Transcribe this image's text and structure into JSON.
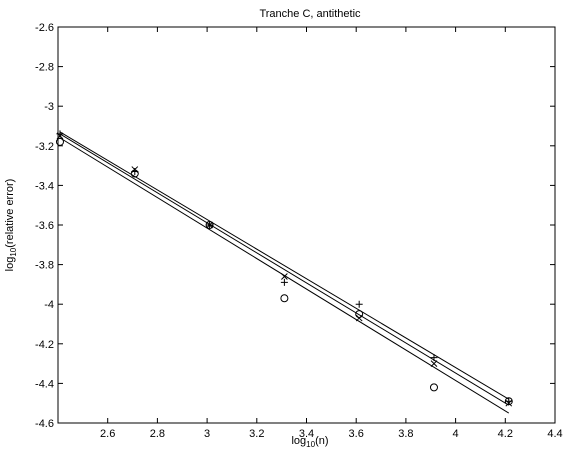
{
  "chart_data": {
    "type": "scatter",
    "title": "Tranche C, antithetic",
    "xlabel": {
      "base": "log",
      "sub": "10",
      "rest": "(n)"
    },
    "ylabel": {
      "base": "log",
      "sub": "10",
      "rest": "(relative error)"
    },
    "xlim": [
      2.4,
      4.4
    ],
    "ylim": [
      -4.6,
      -2.6
    ],
    "xticks": [
      2.6,
      2.8,
      3,
      3.2,
      3.4,
      3.6,
      3.8,
      4,
      4.2,
      4.4
    ],
    "xtick_labels": [
      "2.6",
      "2.8",
      "3",
      "3.2",
      "3.4",
      "3.6",
      "3.8",
      "4",
      "4.2",
      "4.4"
    ],
    "yticks": [
      -2.6,
      -2.8,
      -3,
      -3.2,
      -3.4,
      -3.6,
      -3.8,
      -4,
      -4.2,
      -4.4,
      -4.6
    ],
    "ytick_labels": [
      "-2.6",
      "-2.8",
      "-3",
      "-3.2",
      "-3.4",
      "-3.6",
      "-3.8",
      "-4",
      "-4.2",
      "-4.4",
      "-4.6"
    ],
    "grid": false,
    "series": [
      {
        "marker": "circle",
        "x": [
          2.408,
          2.709,
          3.01,
          3.311,
          3.612,
          3.913,
          4.214
        ],
        "y": [
          -3.18,
          -3.34,
          -3.6,
          -3.97,
          -4.05,
          -4.42,
          -4.49
        ],
        "fit": {
          "x": [
            2.408,
            4.214
          ],
          "y": [
            -3.16,
            -4.55
          ]
        }
      },
      {
        "marker": "plus",
        "x": [
          2.408,
          2.709,
          3.01,
          3.311,
          3.612,
          3.913,
          4.214
        ],
        "y": [
          -3.14,
          -3.33,
          -3.6,
          -3.89,
          -4.0,
          -4.27,
          -4.49
        ],
        "fit": {
          "x": [
            2.408,
            4.214
          ],
          "y": [
            -3.13,
            -4.48
          ]
        }
      },
      {
        "marker": "cross",
        "x": [
          2.408,
          2.709,
          3.01,
          3.311,
          3.612,
          3.913,
          4.214
        ],
        "y": [
          -3.15,
          -3.32,
          -3.6,
          -3.86,
          -4.07,
          -4.3,
          -4.5
        ],
        "fit": {
          "x": [
            2.408,
            4.214
          ],
          "y": [
            -3.14,
            -4.51
          ]
        }
      }
    ]
  }
}
